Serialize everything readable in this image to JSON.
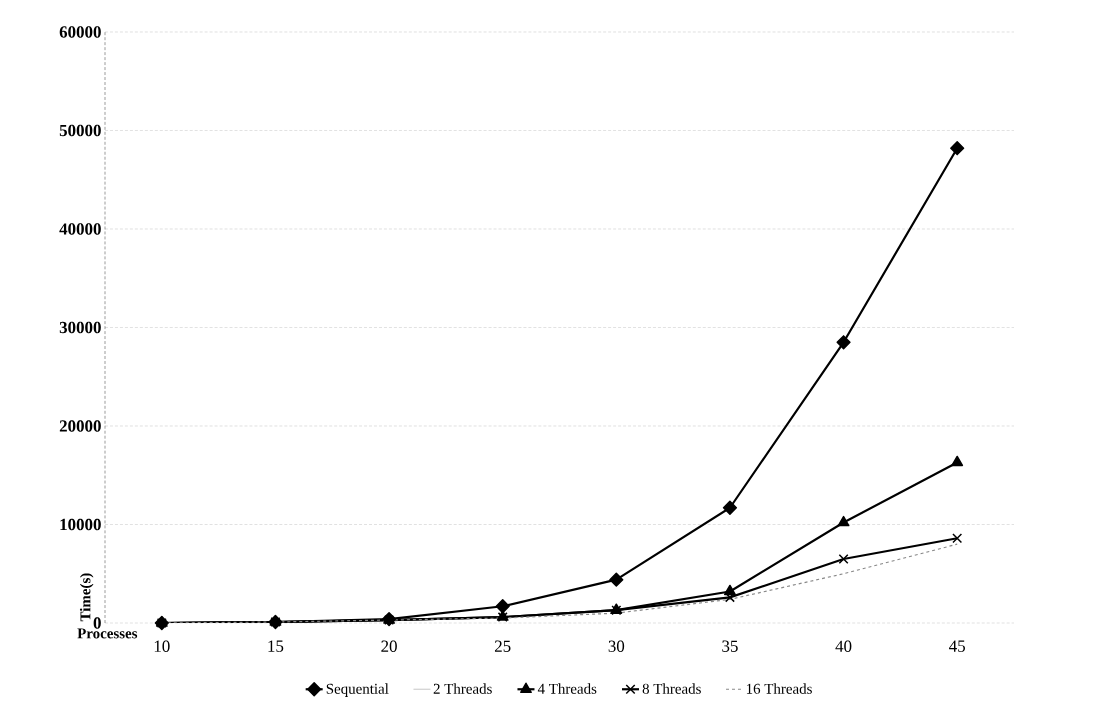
{
  "chart_data": {
    "type": "line",
    "xlabel": "Processes",
    "ylabel": "Time(s)",
    "categories": [
      "10",
      "15",
      "20",
      "25",
      "30",
      "35",
      "40",
      "45"
    ],
    "series": [
      {
        "name": "Sequential",
        "color": "#000000",
        "marker": "diamond",
        "line_style": "solid",
        "values": [
          0,
          100,
          400,
          1700,
          4400,
          11700,
          28500,
          48200
        ]
      },
      {
        "name": "2 Threads",
        "color": "#d0d0d0",
        "marker": "none",
        "line_style": "solid",
        "values": [
          null,
          null,
          null,
          null,
          null,
          null,
          null,
          null
        ]
      },
      {
        "name": "4 Threads",
        "color": "#000000",
        "marker": "triangle",
        "line_style": "solid",
        "values": [
          0,
          100,
          300,
          600,
          1300,
          3200,
          10200,
          16300
        ]
      },
      {
        "name": "8 Threads",
        "color": "#000000",
        "marker": "cross",
        "line_style": "solid",
        "values": [
          0,
          100,
          300,
          600,
          1300,
          2600,
          6500,
          8600
        ]
      },
      {
        "name": "16 Threads",
        "color": "#888888",
        "marker": "none",
        "line_style": "dashed",
        "values": [
          0,
          100,
          300,
          500,
          1000,
          2400,
          5000,
          8000
        ]
      }
    ],
    "ylim": [
      0,
      60000
    ],
    "yticks": [
      0,
      10000,
      20000,
      30000,
      40000,
      50000,
      60000
    ],
    "grid": "y",
    "legend": "bottom"
  }
}
